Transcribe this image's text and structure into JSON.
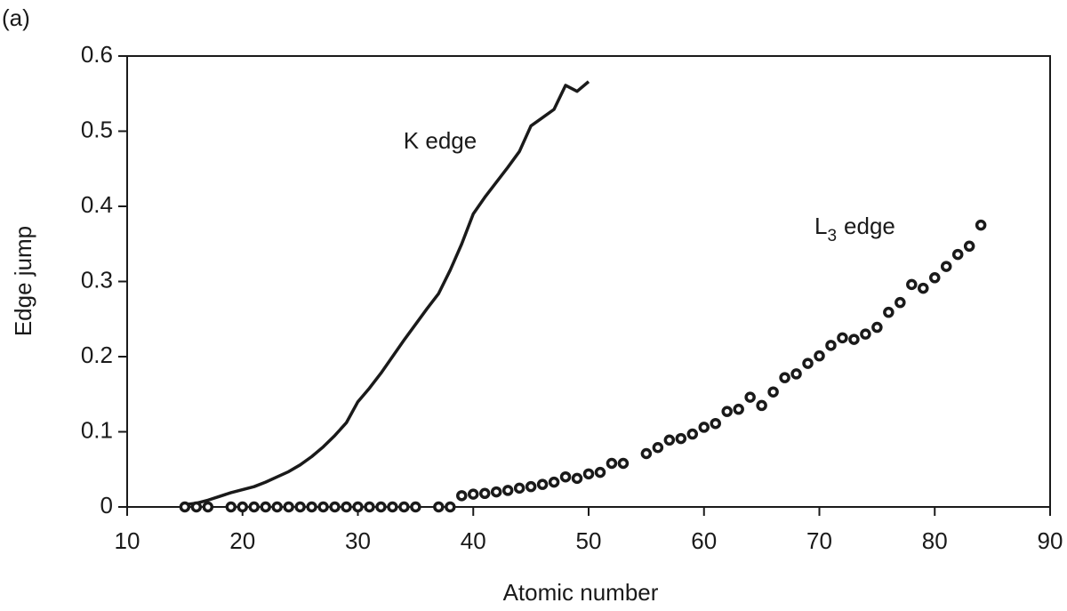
{
  "chart_data": {
    "type": "line",
    "panel_label": "(a)",
    "xlabel": "Atomic number",
    "ylabel": "Edge jump",
    "xlim": [
      10,
      90
    ],
    "xticks": [
      10,
      20,
      30,
      40,
      50,
      60,
      70,
      80,
      90
    ],
    "ylim": [
      0,
      0.6
    ],
    "yticks": [
      0,
      0.1,
      0.2,
      0.3,
      0.4,
      0.5,
      0.6
    ],
    "grid": false,
    "series": [
      {
        "name": "K edge",
        "mode": "line",
        "color": "#1a1a1a",
        "x": [
          15,
          16,
          17,
          18,
          19,
          20,
          21,
          22,
          23,
          24,
          25,
          26,
          27,
          28,
          29,
          30,
          31,
          32,
          33,
          34,
          35,
          36,
          37,
          38,
          39,
          40,
          41,
          42,
          43,
          44,
          45,
          46,
          47,
          48,
          49,
          50
        ],
        "values": [
          0.003,
          0.005,
          0.009,
          0.014,
          0.019,
          0.023,
          0.027,
          0.033,
          0.04,
          0.047,
          0.056,
          0.067,
          0.08,
          0.095,
          0.112,
          0.14,
          0.158,
          0.178,
          0.2,
          0.222,
          0.243,
          0.264,
          0.284,
          0.315,
          0.35,
          0.39,
          0.412,
          0.432,
          0.452,
          0.473,
          0.507,
          0.518,
          0.529,
          0.561,
          0.553,
          0.566
        ]
      },
      {
        "name": {
          "base": "L",
          "sub": "3",
          "rest": "edge"
        },
        "mode": "markers",
        "color": "#1a1a1a",
        "x": [
          15,
          16,
          17,
          19,
          20,
          21,
          22,
          23,
          24,
          25,
          26,
          27,
          28,
          29,
          30,
          31,
          32,
          33,
          34,
          35,
          37,
          38,
          39,
          40,
          41,
          42,
          43,
          44,
          45,
          46,
          47,
          48,
          49,
          50,
          51,
          52,
          53,
          55,
          56,
          57,
          58,
          59,
          60,
          61,
          62,
          63,
          64,
          65,
          66,
          67,
          68,
          69,
          70,
          71,
          72,
          73,
          74,
          75,
          76,
          77,
          78,
          79,
          80,
          81,
          82,
          83,
          84
        ],
        "values": [
          0,
          0,
          0,
          0,
          0,
          0,
          0,
          0,
          0,
          0,
          0,
          0,
          0,
          0,
          0,
          0,
          0,
          0,
          0,
          0,
          0,
          0,
          0.015,
          0.017,
          0.018,
          0.02,
          0.022,
          0.025,
          0.027,
          0.03,
          0.033,
          0.04,
          0.038,
          0.044,
          0.046,
          0.058,
          0.058,
          0.071,
          0.079,
          0.089,
          0.091,
          0.097,
          0.106,
          0.111,
          0.127,
          0.13,
          0.146,
          0.135,
          0.153,
          0.172,
          0.177,
          0.191,
          0.201,
          0.215,
          0.225,
          0.223,
          0.23,
          0.239,
          0.259,
          0.272,
          0.296,
          0.291,
          0.305,
          0.32,
          0.336,
          0.347,
          0.375
        ]
      }
    ]
  }
}
